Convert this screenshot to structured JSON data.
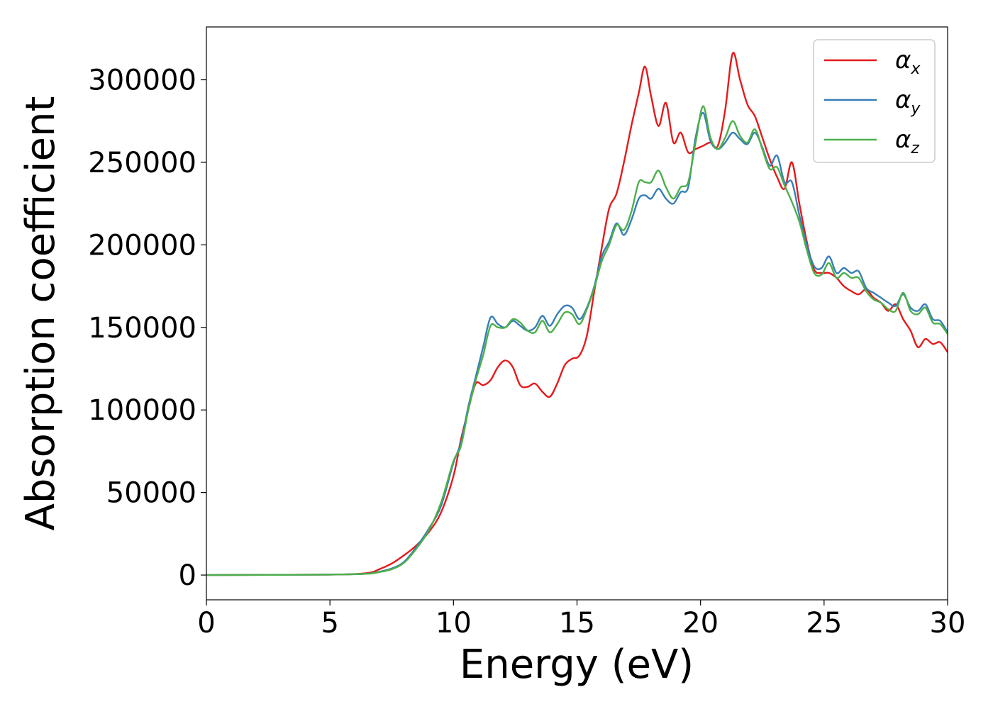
{
  "chart_data": {
    "type": "line",
    "xlabel": "Energy (eV)",
    "ylabel": "Absorption coefficient",
    "xlim": [
      0,
      30
    ],
    "ylim": [
      -15000,
      332000
    ],
    "xticks": [
      0,
      5,
      10,
      15,
      20,
      25,
      30
    ],
    "yticks": [
      0,
      50000,
      100000,
      150000,
      200000,
      250000,
      300000
    ],
    "grid": false,
    "legend_position": "top-right",
    "series": [
      {
        "name": "α_x",
        "legend_base": "α",
        "legend_sub": "x",
        "color": "#e41a1c",
        "x": [
          0,
          5,
          6.5,
          7,
          7.5,
          8,
          8.5,
          9,
          9.5,
          10,
          10.3,
          10.6,
          10.9,
          11.2,
          11.5,
          11.8,
          12.1,
          12.4,
          12.7,
          13.0,
          13.3,
          13.6,
          13.9,
          14.2,
          14.5,
          14.8,
          15.1,
          15.4,
          15.7,
          16.0,
          16.3,
          16.6,
          16.9,
          17.2,
          17.5,
          17.75,
          18.0,
          18.3,
          18.6,
          18.9,
          19.2,
          19.5,
          19.8,
          20.1,
          20.4,
          20.7,
          21.0,
          21.3,
          21.6,
          21.9,
          22.2,
          22.5,
          22.8,
          23.1,
          23.4,
          23.7,
          24.0,
          24.3,
          24.6,
          24.9,
          25.2,
          25.5,
          25.8,
          26.1,
          26.4,
          26.7,
          27.0,
          27.3,
          27.6,
          27.9,
          28.2,
          28.5,
          28.8,
          29.1,
          29.4,
          29.7,
          30.0
        ],
        "y": [
          0,
          300,
          1200,
          3500,
          7000,
          12000,
          18000,
          26000,
          38000,
          60000,
          82000,
          100000,
          116000,
          115000,
          118000,
          126000,
          130000,
          126000,
          115000,
          114000,
          116000,
          111000,
          108000,
          116000,
          127000,
          131000,
          133000,
          145000,
          172000,
          198000,
          222000,
          231000,
          250000,
          272000,
          292000,
          308000,
          290000,
          272000,
          286000,
          262000,
          268000,
          256000,
          258000,
          260000,
          262000,
          260000,
          282000,
          316000,
          300000,
          285000,
          278000,
          265000,
          252000,
          241000,
          234000,
          250000,
          225000,
          202000,
          185000,
          183000,
          183000,
          180000,
          175000,
          172000,
          170000,
          173000,
          168000,
          165000,
          160000,
          164000,
          155000,
          148000,
          138000,
          143000,
          140000,
          141000,
          135000
        ]
      },
      {
        "name": "α_y",
        "legend_base": "α",
        "legend_sub": "y",
        "color": "#377eb8",
        "x": [
          0,
          5,
          6.5,
          7,
          7.5,
          8,
          8.5,
          9,
          9.5,
          10,
          10.3,
          10.6,
          10.9,
          11.2,
          11.5,
          11.8,
          12.1,
          12.4,
          12.7,
          13.0,
          13.3,
          13.6,
          13.9,
          14.2,
          14.5,
          14.8,
          15.1,
          15.4,
          15.7,
          16.0,
          16.3,
          16.6,
          16.9,
          17.2,
          17.5,
          17.75,
          18.0,
          18.3,
          18.6,
          18.9,
          19.2,
          19.5,
          19.8,
          20.1,
          20.4,
          20.7,
          21.0,
          21.3,
          21.6,
          21.9,
          22.2,
          22.5,
          22.8,
          23.1,
          23.4,
          23.7,
          24.0,
          24.3,
          24.6,
          24.9,
          25.2,
          25.5,
          25.8,
          26.1,
          26.4,
          26.7,
          27.0,
          27.3,
          27.6,
          27.9,
          28.2,
          28.5,
          28.8,
          29.1,
          29.4,
          29.7,
          30.0
        ],
        "y": [
          0,
          300,
          800,
          2000,
          4000,
          8000,
          17000,
          28000,
          42000,
          68000,
          80000,
          102000,
          120000,
          138000,
          156000,
          152000,
          150000,
          154000,
          151000,
          148000,
          150000,
          157000,
          151000,
          158000,
          163000,
          162000,
          155000,
          162000,
          175000,
          193000,
          202000,
          213000,
          206000,
          215000,
          228000,
          230000,
          228000,
          234000,
          228000,
          225000,
          232000,
          235000,
          265000,
          280000,
          263000,
          258000,
          262000,
          268000,
          264000,
          261000,
          268000,
          259000,
          248000,
          254000,
          238000,
          238000,
          218000,
          200000,
          187000,
          186000,
          193000,
          183000,
          186000,
          183000,
          184000,
          174000,
          171000,
          168000,
          165000,
          163000,
          170000,
          162000,
          160000,
          164000,
          155000,
          154000,
          147000
        ]
      },
      {
        "name": "α_z",
        "legend_base": "α",
        "legend_sub": "z",
        "color": "#4daf4a",
        "x": [
          0,
          5,
          6.5,
          7,
          7.5,
          8,
          8.5,
          9,
          9.5,
          10,
          10.3,
          10.6,
          10.9,
          11.2,
          11.5,
          11.8,
          12.1,
          12.4,
          12.7,
          13.0,
          13.3,
          13.6,
          13.9,
          14.2,
          14.5,
          14.8,
          15.1,
          15.4,
          15.7,
          16.0,
          16.3,
          16.6,
          16.9,
          17.2,
          17.5,
          17.75,
          18.0,
          18.3,
          18.6,
          18.9,
          19.2,
          19.5,
          19.8,
          20.1,
          20.4,
          20.7,
          21.0,
          21.3,
          21.6,
          21.9,
          22.2,
          22.5,
          22.8,
          23.1,
          23.4,
          23.7,
          24.0,
          24.3,
          24.6,
          24.9,
          25.2,
          25.5,
          25.8,
          26.1,
          26.4,
          26.7,
          27.0,
          27.3,
          27.6,
          27.9,
          28.2,
          28.5,
          28.8,
          29.1,
          29.4,
          29.7,
          30.0
        ],
        "y": [
          0,
          300,
          800,
          1800,
          3500,
          7500,
          16000,
          27000,
          44000,
          69000,
          78000,
          100000,
          118000,
          133000,
          151000,
          150000,
          150000,
          155000,
          153000,
          148000,
          147000,
          154000,
          147000,
          152000,
          159000,
          158000,
          152000,
          161000,
          174000,
          190000,
          200000,
          212000,
          209000,
          220000,
          238000,
          238000,
          238000,
          245000,
          235000,
          228000,
          235000,
          238000,
          262000,
          284000,
          265000,
          258000,
          265000,
          275000,
          266000,
          262000,
          270000,
          258000,
          246000,
          247000,
          236000,
          226000,
          214000,
          197000,
          183000,
          182000,
          189000,
          180000,
          183000,
          180000,
          180000,
          172000,
          167000,
          165000,
          161000,
          160000,
          171000,
          160000,
          158000,
          162000,
          153000,
          152000,
          146000
        ]
      }
    ]
  }
}
